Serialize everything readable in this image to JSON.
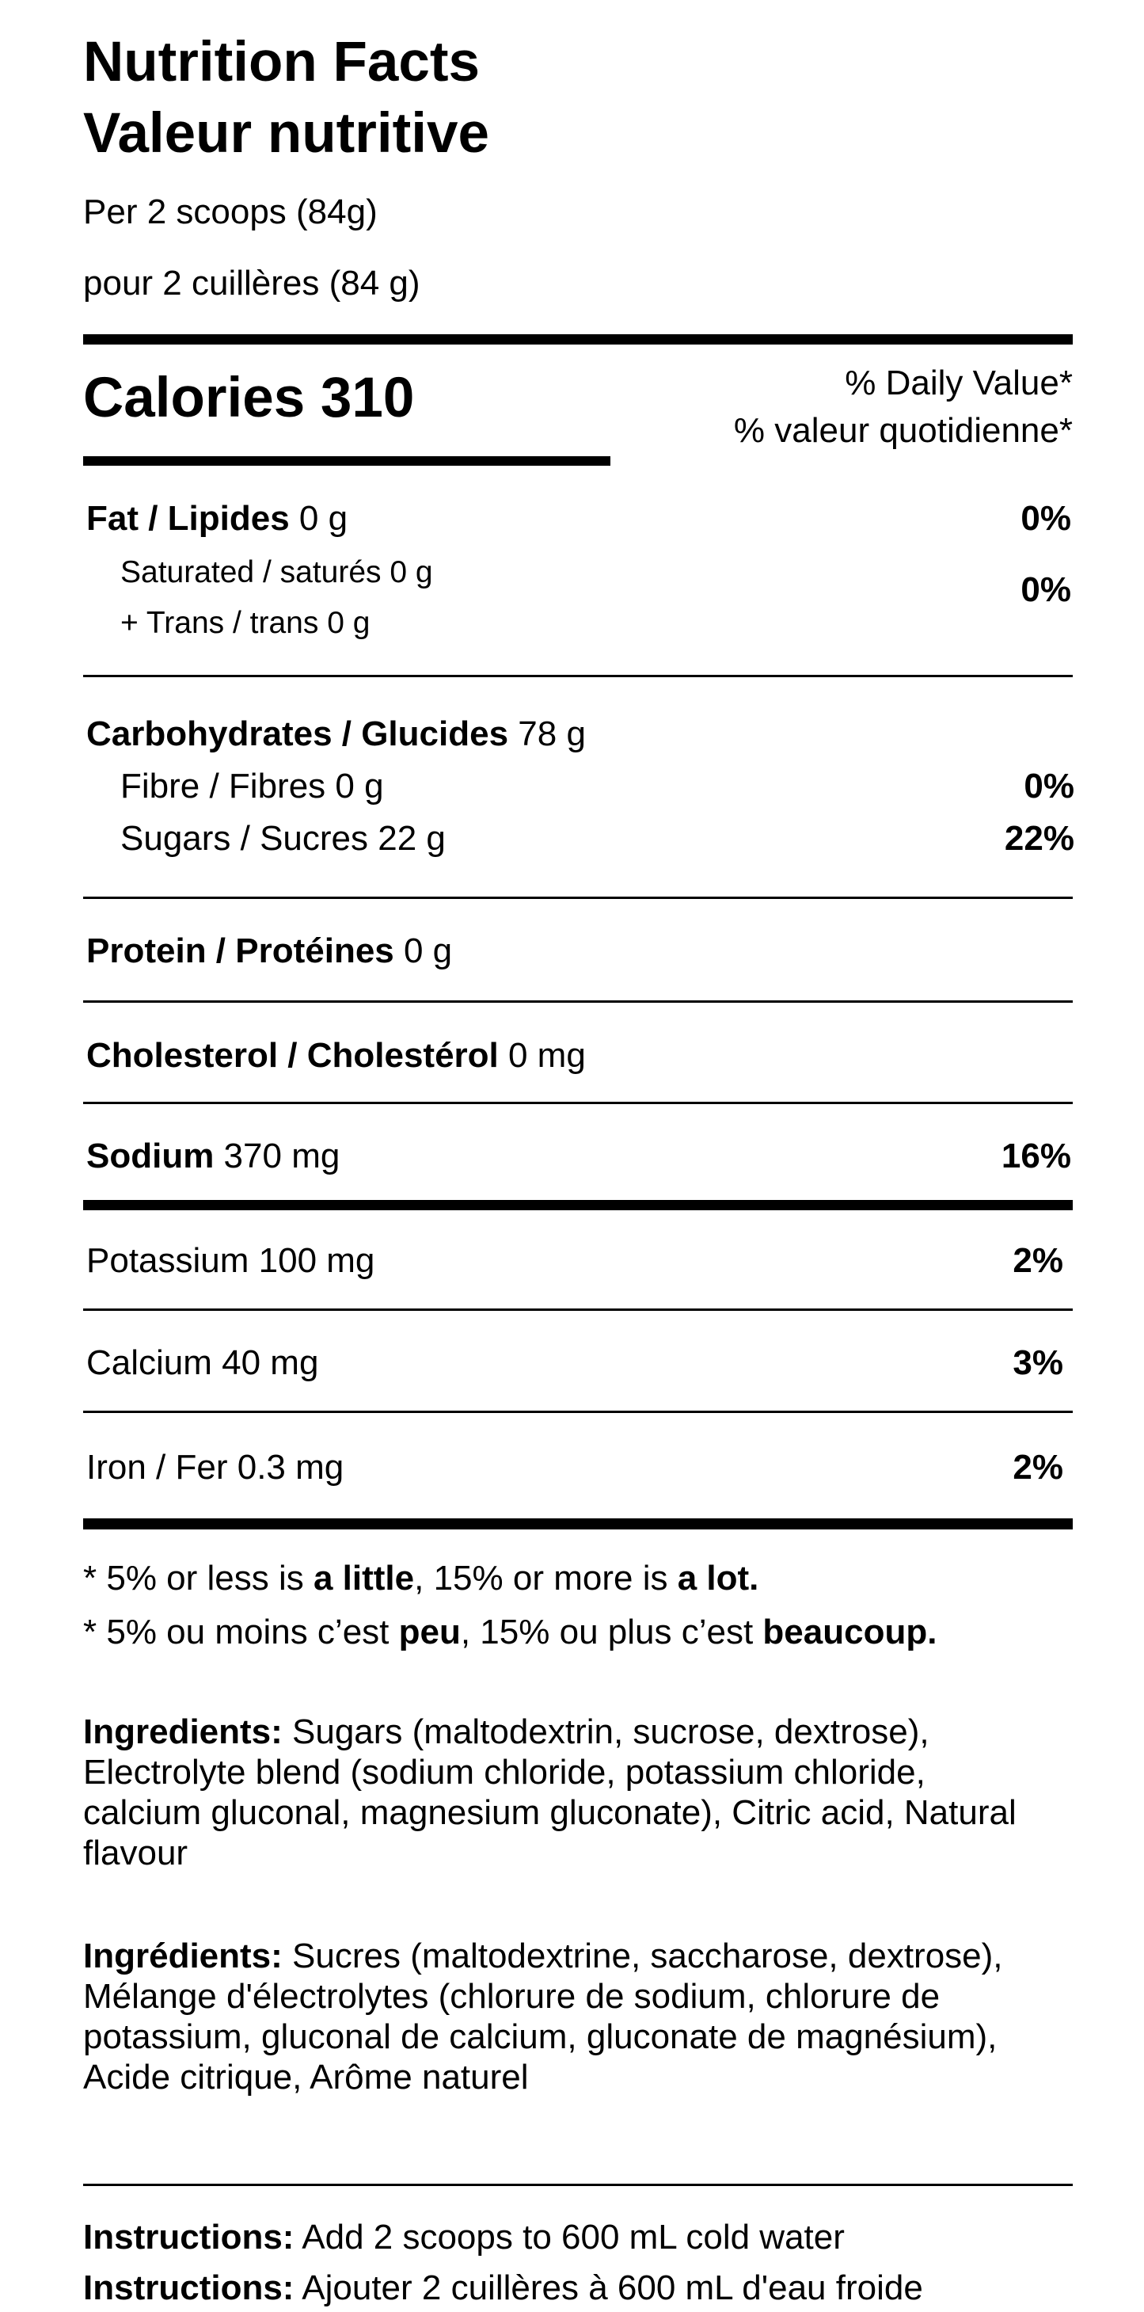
{
  "header": {
    "title_en": "Nutrition Facts",
    "title_fr": "Valeur nutritive",
    "serving_en": "Per 2 scoops (84g)",
    "serving_fr": "pour 2 cuillères (84 g)"
  },
  "calories": {
    "label": "Calories 310",
    "dv_en": "% Daily Value*",
    "dv_fr": "% valeur quotidienne*"
  },
  "nutrients": {
    "fat": {
      "name": "Fat / Lipides",
      "amount": " 0 g",
      "dv": "0%"
    },
    "saturated": {
      "name": "Saturated / saturés 0 g"
    },
    "trans": {
      "name": "+ Trans / trans 0 g",
      "dv": "0%"
    },
    "carbs": {
      "name": "Carbohydrates / Glucides",
      "amount": " 78 g"
    },
    "fibre": {
      "name": "Fibre / Fibres 0 g",
      "dv": "0%"
    },
    "sugars": {
      "name": "Sugars / Sucres 22 g",
      "dv": "22%"
    },
    "protein": {
      "name": "Protein / Protéines",
      "amount": " 0 g"
    },
    "cholesterol": {
      "name": "Cholesterol / Cholestérol",
      "amount": " 0 mg"
    },
    "sodium": {
      "name": "Sodium",
      "amount": " 370 mg",
      "dv": "16%"
    },
    "potassium": {
      "name": "Potassium 100 mg",
      "dv": "2%"
    },
    "calcium": {
      "name": "Calcium 40 mg",
      "dv": "3%"
    },
    "iron": {
      "name": "Iron / Fer 0.3 mg",
      "dv": "2%"
    }
  },
  "footnote": {
    "en": {
      "a": "* 5% or less is ",
      "b": "a little",
      "c": ", 15% or more is ",
      "d": "a lot."
    },
    "fr": {
      "a": "* 5% ou moins c’est ",
      "b": "peu",
      "c": ", 15% ou plus c’est ",
      "d": "beaucoup."
    }
  },
  "ingredients": {
    "en_label": "Ingredients:",
    "en_text": " Sugars (maltodextrin, sucrose, dextrose), Electrolyte blend (sodium chloride, potassium chloride, calcium gluconal, magnesium gluconate), Citric acid, Natural flavour",
    "fr_label": "Ingrédients:",
    "fr_text": " Sucres (maltodextrine, saccharose, dextrose), Mélange d'électrolytes (chlorure de sodium, chlorure de potassium, gluconal de calcium, gluconate de magnésium), Acide citrique, Arôme naturel"
  },
  "instructions": {
    "label": "Instructions:",
    "en": " Add 2 scoops to 600 mL cold water",
    "fr": " Ajouter 2 cuillères à 600 mL d'eau froide"
  }
}
